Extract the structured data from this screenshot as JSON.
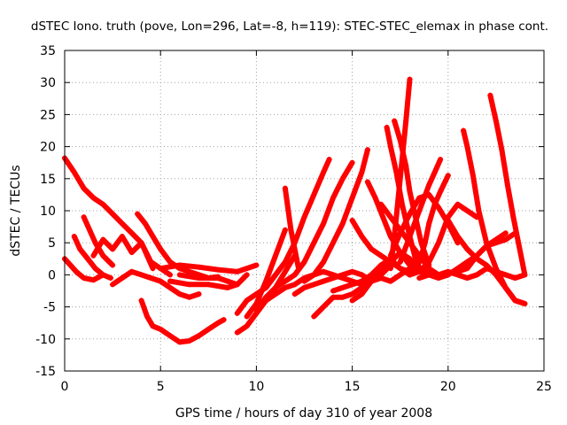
{
  "chart_data": {
    "type": "scatter",
    "title": "dSTEC Iono. truth (pove, Lon=296, Lat=-8, h=119): STEC-STEC_elemax in phase cont.",
    "xlabel": "GPS time / hours of day 310 of year 2008",
    "ylabel": "dSTEC  / TECUs",
    "xlim": [
      0,
      25
    ],
    "ylim": [
      -15,
      35
    ],
    "xticks": [
      0,
      5,
      10,
      15,
      20,
      25
    ],
    "yticks": [
      -15,
      -10,
      -5,
      0,
      5,
      10,
      15,
      20,
      25,
      30,
      35
    ],
    "grid": true,
    "marker": "+",
    "color": "#ff0000",
    "series": [
      {
        "x": [
          0.0,
          0.5,
          1.0,
          1.5,
          2.0,
          2.5,
          3.0,
          3.5,
          4.0,
          4.3,
          4.6
        ],
        "y": [
          18.2,
          16.0,
          13.5,
          12.0,
          11.0,
          9.5,
          8.0,
          6.5,
          5.0,
          3.0,
          1.0
        ]
      },
      {
        "x": [
          0.0,
          0.3,
          0.6,
          1.0,
          1.5,
          2.0
        ],
        "y": [
          2.5,
          1.5,
          0.5,
          -0.5,
          -0.8,
          0.0
        ]
      },
      {
        "x": [
          0.5,
          0.8,
          1.2,
          1.6,
          2.0,
          2.4
        ],
        "y": [
          6.0,
          4.0,
          2.5,
          1.0,
          0.0,
          -0.5
        ]
      },
      {
        "x": [
          1.0,
          1.3,
          1.6,
          2.0,
          2.5
        ],
        "y": [
          9.0,
          7.0,
          5.0,
          3.0,
          1.5
        ]
      },
      {
        "x": [
          1.5,
          2.0,
          2.5,
          3.0,
          3.5,
          4.0,
          4.5,
          5.0,
          5.5
        ],
        "y": [
          3.0,
          5.5,
          4.0,
          6.0,
          3.5,
          5.0,
          2.0,
          1.0,
          0.0
        ]
      },
      {
        "x": [
          2.5,
          3.0,
          3.5,
          4.0,
          4.5,
          5.0,
          5.5,
          6.0,
          6.5,
          7.0
        ],
        "y": [
          -1.5,
          -0.5,
          0.5,
          0.0,
          -0.5,
          -1.0,
          -2.0,
          -3.0,
          -3.5,
          -3.0
        ]
      },
      {
        "x": [
          3.8,
          4.2,
          4.6,
          5.0,
          5.5,
          6.0,
          6.5,
          7.0,
          7.5,
          8.0
        ],
        "y": [
          9.5,
          8.0,
          6.0,
          4.0,
          2.0,
          1.0,
          0.5,
          0.0,
          -0.5,
          -0.3
        ]
      },
      {
        "x": [
          4.0,
          4.3,
          4.6,
          5.0,
          5.5,
          6.0,
          6.5,
          7.0,
          7.5,
          8.0,
          8.3
        ],
        "y": [
          -4.0,
          -6.5,
          -8.0,
          -8.5,
          -9.5,
          -10.5,
          -10.3,
          -9.5,
          -8.5,
          -7.5,
          -7.0
        ]
      },
      {
        "x": [
          5.0,
          6.0,
          7.0,
          8.0,
          9.0,
          10.0
        ],
        "y": [
          1.0,
          1.5,
          1.2,
          0.8,
          0.5,
          1.5
        ]
      },
      {
        "x": [
          5.5,
          6.5,
          7.5,
          8.5,
          9.0,
          9.5
        ],
        "y": [
          -1.0,
          -1.5,
          -1.5,
          -2.0,
          -1.5,
          0.0
        ]
      },
      {
        "x": [
          6.0,
          7.0,
          8.0,
          8.5,
          9.0
        ],
        "y": [
          0.0,
          -0.5,
          -0.5,
          -1.0,
          -1.5
        ]
      },
      {
        "x": [
          9.0,
          9.5,
          10.0,
          10.5,
          11.0,
          11.5,
          12.0
        ],
        "y": [
          -9.0,
          -8.0,
          -6.0,
          -4.0,
          -2.0,
          0.5,
          3.0
        ]
      },
      {
        "x": [
          9.5,
          10.0,
          10.5,
          11.0,
          11.5
        ],
        "y": [
          -6.5,
          -4.5,
          -1.0,
          3.0,
          7.0
        ]
      },
      {
        "x": [
          9.0,
          9.5,
          10.0,
          10.5,
          11.0,
          11.5,
          12.0,
          12.5,
          13.0,
          13.5,
          13.8
        ],
        "y": [
          -6.0,
          -4.0,
          -3.0,
          -2.0,
          0.0,
          2.0,
          5.0,
          9.0,
          12.5,
          16.0,
          18.0
        ]
      },
      {
        "x": [
          10.0,
          10.5,
          11.0,
          11.5,
          12.0,
          12.5,
          13.0,
          13.5,
          14.0,
          14.5,
          15.0
        ],
        "y": [
          -5.5,
          -3.5,
          -2.0,
          -1.0,
          0.0,
          2.0,
          5.0,
          8.0,
          12.0,
          15.0,
          17.5
        ]
      },
      {
        "x": [
          10.5,
          11.0,
          11.5,
          12.0,
          12.5,
          13.0,
          13.5,
          14.0,
          14.5,
          15.0,
          15.5,
          15.8
        ],
        "y": [
          -4.0,
          -3.0,
          -2.0,
          -1.5,
          -0.5,
          0.0,
          2.0,
          5.0,
          8.0,
          12.0,
          16.0,
          19.5
        ]
      },
      {
        "x": [
          11.5,
          11.8,
          12.2
        ],
        "y": [
          13.5,
          7.0,
          1.0
        ]
      },
      {
        "x": [
          12.0,
          12.5,
          13.0,
          13.5,
          14.0,
          14.5,
          15.0,
          15.5,
          16.0
        ],
        "y": [
          -3.0,
          -2.0,
          -1.5,
          -1.0,
          -0.5,
          0.0,
          0.5,
          0.0,
          -1.0
        ]
      },
      {
        "x": [
          12.5,
          13.0,
          13.5,
          14.0,
          14.5,
          15.0,
          15.5,
          16.0,
          16.5,
          17.0,
          17.5,
          18.0
        ],
        "y": [
          -1.0,
          0.0,
          0.5,
          0.0,
          -0.5,
          -1.0,
          -1.5,
          -1.0,
          -0.5,
          -1.0,
          0.0,
          1.0
        ]
      },
      {
        "x": [
          13.0,
          13.5,
          14.0,
          14.5,
          15.0,
          15.5,
          16.0,
          16.5,
          17.0
        ],
        "y": [
          -6.5,
          -5.0,
          -3.5,
          -3.5,
          -3.0,
          -2.0,
          -1.0,
          0.0,
          1.5
        ]
      },
      {
        "x": [
          14.0,
          14.5,
          15.0,
          15.5,
          16.0,
          16.5,
          17.0,
          17.5,
          18.0
        ],
        "y": [
          -2.5,
          -2.0,
          -1.5,
          -1.0,
          0.0,
          1.5,
          2.5,
          1.0,
          0.0
        ]
      },
      {
        "x": [
          15.0,
          15.5,
          16.0,
          16.5,
          17.0,
          17.5,
          18.0,
          18.5,
          19.0
        ],
        "y": [
          -4.0,
          -3.0,
          -1.0,
          0.5,
          2.0,
          3.5,
          2.5,
          1.0,
          0.5
        ]
      },
      {
        "x": [
          15.0,
          15.5,
          16.0,
          16.5,
          17.0,
          17.5,
          18.0
        ],
        "y": [
          8.5,
          6.0,
          4.0,
          3.0,
          2.0,
          1.0,
          0.5
        ]
      },
      {
        "x": [
          15.8,
          16.2,
          16.6,
          17.0,
          17.5,
          18.0,
          18.5
        ],
        "y": [
          14.5,
          12.0,
          9.0,
          6.0,
          3.5,
          1.5,
          0.5
        ]
      },
      {
        "x": [
          16.5,
          17.0,
          17.5,
          18.0,
          18.5,
          19.0,
          19.5
        ],
        "y": [
          11.0,
          9.0,
          7.0,
          5.0,
          3.0,
          1.0,
          0.0
        ]
      },
      {
        "x": [
          16.8,
          17.0,
          17.3,
          17.6,
          18.0,
          18.3,
          18.6
        ],
        "y": [
          23.0,
          20.0,
          16.0,
          11.0,
          6.0,
          2.5,
          0.5
        ]
      },
      {
        "x": [
          17.2,
          17.5,
          17.8,
          18.0,
          18.3,
          18.6,
          19.0
        ],
        "y": [
          24.0,
          21.0,
          17.0,
          13.0,
          9.0,
          5.0,
          1.5
        ]
      },
      {
        "x": [
          17.0,
          17.2,
          17.4,
          17.6,
          17.8,
          18.0
        ],
        "y": [
          1.0,
          6.0,
          12.0,
          18.0,
          24.0,
          30.5
        ]
      },
      {
        "x": [
          18.0,
          18.2,
          18.5,
          18.8,
          19.0,
          19.3,
          19.6,
          20.0
        ],
        "y": [
          0.0,
          0.5,
          2.0,
          5.0,
          8.0,
          11.0,
          13.0,
          15.5
        ]
      },
      {
        "x": [
          17.0,
          17.5,
          18.0,
          18.5,
          19.0,
          19.5,
          20.0,
          20.5
        ],
        "y": [
          3.0,
          6.5,
          9.5,
          12.0,
          12.5,
          10.5,
          8.0,
          5.0
        ]
      },
      {
        "x": [
          17.5,
          18.0,
          18.5,
          19.0,
          19.3,
          19.6
        ],
        "y": [
          2.0,
          6.0,
          10.0,
          14.0,
          16.0,
          18.0
        ]
      },
      {
        "x": [
          18.5,
          19.0,
          19.5,
          20.0,
          20.5,
          21.0,
          21.5
        ],
        "y": [
          0.5,
          2.0,
          5.0,
          9.0,
          11.0,
          10.0,
          9.0
        ]
      },
      {
        "x": [
          18.0,
          18.5,
          19.0,
          19.5,
          20.0,
          20.5,
          21.0,
          21.5,
          22.0,
          22.5,
          23.0
        ],
        "y": [
          0.0,
          0.5,
          0.0,
          -0.5,
          0.0,
          1.0,
          2.0,
          3.0,
          4.5,
          5.5,
          6.5
        ]
      },
      {
        "x": [
          18.5,
          19.0,
          19.5,
          20.0,
          20.5,
          21.0,
          21.5,
          22.0,
          22.5,
          23.0,
          23.5,
          24.0
        ],
        "y": [
          -0.5,
          0.0,
          0.0,
          0.5,
          0.0,
          -0.5,
          0.0,
          1.0,
          0.5,
          0.0,
          -0.5,
          0.0
        ]
      },
      {
        "x": [
          20.8,
          21.0,
          21.3,
          21.6,
          22.0,
          22.5,
          23.0,
          23.5,
          24.0
        ],
        "y": [
          22.5,
          20.0,
          15.5,
          10.0,
          5.0,
          1.0,
          -2.0,
          -4.0,
          -4.5
        ]
      },
      {
        "x": [
          20.0,
          20.5,
          21.0,
          21.5,
          22.0,
          22.5,
          23.0,
          23.5,
          24.0
        ],
        "y": [
          8.5,
          6.0,
          4.0,
          2.5,
          1.5,
          0.0,
          -2.0,
          -4.0,
          -4.5
        ]
      },
      {
        "x": [
          22.2,
          22.5,
          22.8,
          23.1,
          23.4,
          23.7,
          24.0
        ],
        "y": [
          28.0,
          24.0,
          19.5,
          14.0,
          9.0,
          4.5,
          0.0
        ]
      },
      {
        "x": [
          20.5,
          21.0,
          21.5,
          22.0,
          22.5,
          23.0,
          23.5
        ],
        "y": [
          0.5,
          1.0,
          3.0,
          4.5,
          5.0,
          5.5,
          6.5
        ]
      }
    ]
  }
}
